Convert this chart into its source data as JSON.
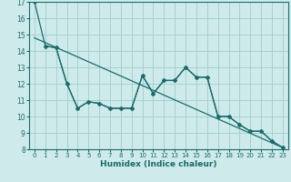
{
  "xlabel": "Humidex (Indice chaleur)",
  "ylabel": "",
  "xlim": [
    -0.5,
    23.5
  ],
  "ylim": [
    8,
    17
  ],
  "yticks": [
    8,
    9,
    10,
    11,
    12,
    13,
    14,
    15,
    16,
    17
  ],
  "xticks": [
    0,
    1,
    2,
    3,
    4,
    5,
    6,
    7,
    8,
    9,
    10,
    11,
    12,
    13,
    14,
    15,
    16,
    17,
    18,
    19,
    20,
    21,
    22,
    23
  ],
  "bg_color": "#ceeaea",
  "grid_color": "#9ecece",
  "line_color": "#1a6b6b",
  "line1_x": [
    0,
    1,
    2,
    3,
    4,
    5,
    6,
    7,
    8,
    9,
    10,
    11,
    12,
    13,
    14,
    15,
    16,
    17,
    18,
    19,
    20,
    21,
    22,
    23
  ],
  "line1_y": [
    17.0,
    14.3,
    14.2,
    12.0,
    10.5,
    10.9,
    10.8,
    10.5,
    10.5,
    10.5,
    12.5,
    11.4,
    12.2,
    12.2,
    13.0,
    12.4,
    12.4,
    10.0,
    10.0,
    9.5,
    9.1,
    9.1,
    8.5,
    8.1
  ],
  "line2_x": [
    1,
    2,
    3,
    4,
    5,
    6,
    7,
    8,
    9,
    10,
    11,
    12,
    13,
    14,
    15,
    16,
    17,
    18,
    19,
    20,
    21,
    22,
    23
  ],
  "line2_y": [
    14.3,
    14.2,
    12.0,
    10.5,
    10.9,
    10.8,
    10.5,
    10.5,
    10.5,
    12.5,
    11.4,
    12.2,
    12.2,
    13.0,
    12.4,
    12.4,
    10.0,
    10.0,
    9.5,
    9.1,
    9.1,
    8.5,
    8.1
  ],
  "trend_x": [
    0,
    23
  ],
  "trend_y": [
    14.8,
    8.1
  ]
}
